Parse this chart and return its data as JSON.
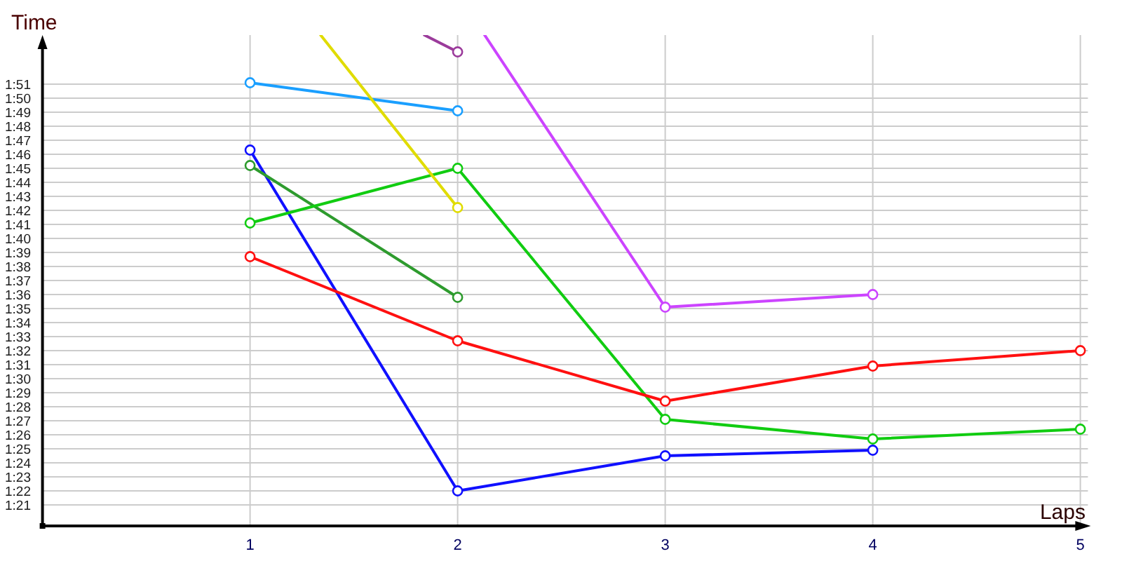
{
  "chart_data": {
    "type": "line",
    "xlabel": "Laps",
    "ylabel": "Time",
    "x": [
      1,
      2,
      3,
      4,
      5
    ],
    "xlim": [
      0,
      5.05
    ],
    "xticks": [
      1,
      2,
      3,
      4,
      5
    ],
    "ylim": [
      79.5,
      114.5
    ],
    "yticks": [
      {
        "value": 81,
        "label": "1:21"
      },
      {
        "value": 82,
        "label": "1:22"
      },
      {
        "value": 83,
        "label": "1:23"
      },
      {
        "value": 84,
        "label": "1:24"
      },
      {
        "value": 85,
        "label": "1:25"
      },
      {
        "value": 86,
        "label": "1:26"
      },
      {
        "value": 87,
        "label": "1:27"
      },
      {
        "value": 88,
        "label": "1:28"
      },
      {
        "value": 89,
        "label": "1:29"
      },
      {
        "value": 90,
        "label": "1:30"
      },
      {
        "value": 91,
        "label": "1:31"
      },
      {
        "value": 92,
        "label": "1:32"
      },
      {
        "value": 93,
        "label": "1:33"
      },
      {
        "value": 94,
        "label": "1:34"
      },
      {
        "value": 95,
        "label": "1:35"
      },
      {
        "value": 96,
        "label": "1:36"
      },
      {
        "value": 97,
        "label": "1:37"
      },
      {
        "value": 98,
        "label": "1:38"
      },
      {
        "value": 99,
        "label": "1:39"
      },
      {
        "value": 100,
        "label": "1:40"
      },
      {
        "value": 101,
        "label": "1:41"
      },
      {
        "value": 102,
        "label": "1:42"
      },
      {
        "value": 103,
        "label": "1:43"
      },
      {
        "value": 104,
        "label": "1:44"
      },
      {
        "value": 105,
        "label": "1:45"
      },
      {
        "value": 106,
        "label": "1:46"
      },
      {
        "value": 107,
        "label": "1:47"
      },
      {
        "value": 108,
        "label": "1:48"
      },
      {
        "value": 109,
        "label": "1:49"
      },
      {
        "value": 110,
        "label": "1:50"
      },
      {
        "value": 111,
        "label": "1:51"
      }
    ],
    "grid": true,
    "marker": "circle",
    "series": [
      {
        "color": "#1a9fff",
        "values": [
          111.1,
          109.1,
          null,
          null,
          null
        ]
      },
      {
        "color": "#1010ff",
        "values": [
          106.3,
          82.0,
          84.5,
          84.9,
          null
        ]
      },
      {
        "color": "#2e9b2e",
        "values": [
          105.2,
          95.8,
          null,
          null,
          null
        ]
      },
      {
        "color": "#11cc11",
        "values": [
          101.1,
          105.0,
          87.1,
          85.7,
          86.4
        ]
      },
      {
        "color": "#ff1010",
        "values": [
          98.7,
          92.7,
          88.4,
          90.9,
          92.0
        ]
      },
      {
        "color": "#e0dc00",
        "x": [
          1.34,
          2
        ],
        "values": [
          114.5,
          102.2
        ],
        "marker": "none"
      },
      {
        "type": "scatter",
        "color": "#e0dc00",
        "x": [
          2
        ],
        "values": [
          102.2
        ]
      },
      {
        "color": "#9b3b9b",
        "x": [
          1.84,
          2
        ],
        "values": [
          114.5,
          113.3
        ],
        "marker": "none"
      },
      {
        "type": "scatter",
        "color": "#9b3b9b",
        "x": [
          2
        ],
        "values": [
          113.3
        ]
      },
      {
        "color": "#cc44ff",
        "x": [
          2.13,
          3,
          4
        ],
        "values": [
          114.5,
          95.1,
          96.0
        ],
        "marker": "none"
      },
      {
        "type": "scatter",
        "color": "#cc44ff",
        "x": [
          3,
          4
        ],
        "values": [
          95.1,
          96.0
        ]
      }
    ]
  }
}
